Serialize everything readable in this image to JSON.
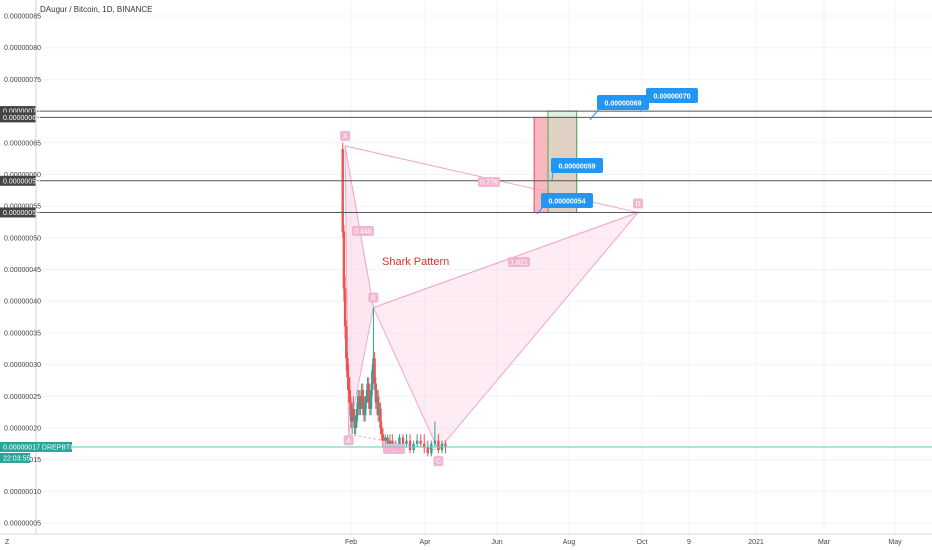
{
  "header": {
    "title": "DAugur / Bitcoin, 1D, BINANCE"
  },
  "colors": {
    "up": "#26a69a",
    "down": "#ef5350",
    "pattern_fill": "#f8c8dc",
    "pattern_line": "#f0a8c8",
    "point_label_bg": "#f2b6d0",
    "callout": "#2196f3",
    "price_line": "#5ec8d0",
    "hline": "#555555",
    "annotation": "#e03030"
  },
  "chart_data": {
    "type": "candlestick",
    "symbol": "DREPBTC",
    "x_ticks": [
      "Feb",
      "Apr",
      "Jun",
      "Aug",
      "Oct",
      "9",
      "2021",
      "Mar",
      "May"
    ],
    "y_ticks": [
      "0.00000085",
      "0.00000080",
      "0.00000075",
      "0.00000065",
      "0.00000060",
      "0.00000055",
      "0.00000050",
      "0.00000045",
      "0.00000040",
      "0.00000035",
      "0.00000030",
      "0.00000025",
      "0.00000020",
      "0.00000015",
      "0.00000010",
      "0.00000005"
    ],
    "ylim": [
      4e-08,
      8.7e-07
    ],
    "current_price": {
      "value": 1.7e-07,
      "label": "0.00000017",
      "symbol_label": "DREPBTC",
      "countdown": "22:03:55"
    },
    "horizontal_levels": [
      {
        "value": 7e-07,
        "label": "0.00000070"
      },
      {
        "value": 6.9e-07,
        "label": "0.00000069"
      },
      {
        "value": 5.9e-07,
        "label": "0.00000059"
      },
      {
        "value": 5.4e-07,
        "label": "0.00000054"
      }
    ],
    "callouts": [
      "0.00000069",
      "0.00000070",
      "0.00000059",
      "0.00000054"
    ],
    "harmonic_pattern": {
      "name": "Shark Pattern",
      "points": [
        {
          "label": "X",
          "date": "2020-01-27",
          "price": 6.45e-07
        },
        {
          "label": "A",
          "date": "2020-01-30",
          "price": 1.9e-07
        },
        {
          "label": "B",
          "date": "2020-02-20",
          "price": 3.9e-07
        },
        {
          "label": "C",
          "date": "2020-04-15",
          "price": 1.65e-07
        },
        {
          "label": "D",
          "date": "2020-10-01",
          "price": 5.4e-07
        }
      ],
      "ratios": [
        {
          "text": "0.446",
          "from": "X",
          "to": "B"
        },
        {
          "text": "0.776",
          "from": "X",
          "to": "D"
        },
        {
          "text": "1.621",
          "from": "B",
          "to": "D"
        },
        {
          "text": "...",
          "from": "A",
          "to": "C"
        }
      ]
    },
    "position_box": {
      "start": "2020-07-05",
      "end": "2020-08-10",
      "entry": 6.9e-07,
      "stop": 5.4e-07,
      "target": 7e-07
    },
    "candles": [
      {
        "d": "2020-01-25",
        "o": 6.4e-07,
        "h": 6.5e-07,
        "l": 5e-07,
        "c": 5.1e-07
      },
      {
        "d": "2020-01-26",
        "o": 5.1e-07,
        "h": 5.2e-07,
        "l": 4e-07,
        "c": 4.2e-07
      },
      {
        "d": "2020-01-27",
        "o": 4.2e-07,
        "h": 4.4e-07,
        "l": 3.4e-07,
        "c": 3.6e-07
      },
      {
        "d": "2020-01-28",
        "o": 3.6e-07,
        "h": 3.7e-07,
        "l": 2.9e-07,
        "c": 3.1e-07
      },
      {
        "d": "2020-01-29",
        "o": 3.1e-07,
        "h": 3.2e-07,
        "l": 2.6e-07,
        "c": 2.8e-07
      },
      {
        "d": "2020-01-30",
        "o": 2.8e-07,
        "h": 3e-07,
        "l": 2.4e-07,
        "c": 2.6e-07
      },
      {
        "d": "2020-01-31",
        "o": 2.6e-07,
        "h": 2.8e-07,
        "l": 2.2e-07,
        "c": 2.4e-07
      },
      {
        "d": "2020-02-01",
        "o": 2.4e-07,
        "h": 2.5e-07,
        "l": 2e-07,
        "c": 2.1e-07
      },
      {
        "d": "2020-02-02",
        "o": 2.1e-07,
        "h": 2.4e-07,
        "l": 1.9e-07,
        "c": 2.3e-07
      },
      {
        "d": "2020-02-03",
        "o": 2.3e-07,
        "h": 2.5e-07,
        "l": 2.1e-07,
        "c": 2.2e-07
      },
      {
        "d": "2020-02-04",
        "o": 2.2e-07,
        "h": 2.3e-07,
        "l": 1.9e-07,
        "c": 2e-07
      },
      {
        "d": "2020-02-05",
        "o": 2e-07,
        "h": 2.2e-07,
        "l": 1.9e-07,
        "c": 2.1e-07
      },
      {
        "d": "2020-02-06",
        "o": 2.1e-07,
        "h": 2.4e-07,
        "l": 2e-07,
        "c": 2.3e-07
      },
      {
        "d": "2020-02-07",
        "o": 2.3e-07,
        "h": 2.6e-07,
        "l": 2.2e-07,
        "c": 2.5e-07
      },
      {
        "d": "2020-02-08",
        "o": 2.5e-07,
        "h": 2.6e-07,
        "l": 2.2e-07,
        "c": 2.3e-07
      },
      {
        "d": "2020-02-09",
        "o": 2.3e-07,
        "h": 2.5e-07,
        "l": 2.2e-07,
        "c": 2.4e-07
      },
      {
        "d": "2020-02-10",
        "o": 2.4e-07,
        "h": 2.7e-07,
        "l": 2.3e-07,
        "c": 2.6e-07
      },
      {
        "d": "2020-02-11",
        "o": 2.6e-07,
        "h": 2.7e-07,
        "l": 2.2e-07,
        "c": 2.3e-07
      },
      {
        "d": "2020-02-12",
        "o": 2.3e-07,
        "h": 2.5e-07,
        "l": 2.1e-07,
        "c": 2.2e-07
      },
      {
        "d": "2020-02-13",
        "o": 2.2e-07,
        "h": 2.5e-07,
        "l": 2.1e-07,
        "c": 2.4e-07
      },
      {
        "d": "2020-02-14",
        "o": 2.4e-07,
        "h": 2.6e-07,
        "l": 2.3e-07,
        "c": 2.5e-07
      },
      {
        "d": "2020-02-15",
        "o": 2.5e-07,
        "h": 2.8e-07,
        "l": 2.4e-07,
        "c": 2.7e-07
      },
      {
        "d": "2020-02-16",
        "o": 2.7e-07,
        "h": 2.8e-07,
        "l": 2.3e-07,
        "c": 2.4e-07
      },
      {
        "d": "2020-02-17",
        "o": 2.4e-07,
        "h": 2.6e-07,
        "l": 2.2e-07,
        "c": 2.3e-07
      },
      {
        "d": "2020-02-18",
        "o": 2.3e-07,
        "h": 2.7e-07,
        "l": 2.2e-07,
        "c": 2.6e-07
      },
      {
        "d": "2020-02-19",
        "o": 2.6e-07,
        "h": 3e-07,
        "l": 2.5e-07,
        "c": 2.9e-07
      },
      {
        "d": "2020-02-20",
        "o": 2.9e-07,
        "h": 3.9e-07,
        "l": 2.8e-07,
        "c": 3.1e-07
      },
      {
        "d": "2020-02-21",
        "o": 3.1e-07,
        "h": 3.2e-07,
        "l": 2.6e-07,
        "c": 2.7e-07
      },
      {
        "d": "2020-02-22",
        "o": 2.7e-07,
        "h": 2.8e-07,
        "l": 2.3e-07,
        "c": 2.4e-07
      },
      {
        "d": "2020-02-23",
        "o": 2.4e-07,
        "h": 2.6e-07,
        "l": 2.2e-07,
        "c": 2.5e-07
      },
      {
        "d": "2020-02-24",
        "o": 2.5e-07,
        "h": 2.6e-07,
        "l": 2.1e-07,
        "c": 2.2e-07
      },
      {
        "d": "2020-02-25",
        "o": 2.2e-07,
        "h": 2.4e-07,
        "l": 2.1e-07,
        "c": 2.3e-07
      },
      {
        "d": "2020-02-26",
        "o": 2.3e-07,
        "h": 2.4e-07,
        "l": 1.9e-07,
        "c": 2e-07
      },
      {
        "d": "2020-02-27",
        "o": 2e-07,
        "h": 2.1e-07,
        "l": 1.8e-07,
        "c": 1.9e-07
      },
      {
        "d": "2020-02-28",
        "o": 1.9e-07,
        "h": 2e-07,
        "l": 1.7e-07,
        "c": 1.8e-07
      },
      {
        "d": "2020-03-01",
        "o": 1.8e-07,
        "h": 1.9e-07,
        "l": 1.7e-07,
        "c": 1.85e-07
      },
      {
        "d": "2020-03-03",
        "o": 1.85e-07,
        "h": 1.9e-07,
        "l": 1.7e-07,
        "c": 1.75e-07
      },
      {
        "d": "2020-03-05",
        "o": 1.75e-07,
        "h": 1.9e-07,
        "l": 1.6e-07,
        "c": 1.8e-07
      },
      {
        "d": "2020-03-07",
        "o": 1.8e-07,
        "h": 1.9e-07,
        "l": 1.7e-07,
        "c": 1.75e-07
      },
      {
        "d": "2020-03-10",
        "o": 1.75e-07,
        "h": 1.8e-07,
        "l": 1.6e-07,
        "c": 1.7e-07
      },
      {
        "d": "2020-03-13",
        "o": 1.7e-07,
        "h": 1.9e-07,
        "l": 1.6e-07,
        "c": 1.85e-07
      },
      {
        "d": "2020-03-16",
        "o": 1.85e-07,
        "h": 1.9e-07,
        "l": 1.7e-07,
        "c": 1.75e-07
      },
      {
        "d": "2020-03-19",
        "o": 1.75e-07,
        "h": 1.9e-07,
        "l": 1.7e-07,
        "c": 1.8e-07
      },
      {
        "d": "2020-03-22",
        "o": 1.8e-07,
        "h": 1.9e-07,
        "l": 1.6e-07,
        "c": 1.65e-07
      },
      {
        "d": "2020-03-25",
        "o": 1.65e-07,
        "h": 1.8e-07,
        "l": 1.6e-07,
        "c": 1.75e-07
      },
      {
        "d": "2020-03-28",
        "o": 1.75e-07,
        "h": 1.9e-07,
        "l": 1.7e-07,
        "c": 1.8e-07
      },
      {
        "d": "2020-03-31",
        "o": 1.8e-07,
        "h": 1.9e-07,
        "l": 1.7e-07,
        "c": 1.75e-07
      },
      {
        "d": "2020-04-03",
        "o": 1.75e-07,
        "h": 1.9e-07,
        "l": 1.6e-07,
        "c": 1.7e-07
      },
      {
        "d": "2020-04-06",
        "o": 1.7e-07,
        "h": 1.8e-07,
        "l": 1.55e-07,
        "c": 1.6e-07
      },
      {
        "d": "2020-04-09",
        "o": 1.6e-07,
        "h": 1.8e-07,
        "l": 1.55e-07,
        "c": 1.75e-07
      },
      {
        "d": "2020-04-12",
        "o": 1.75e-07,
        "h": 2.1e-07,
        "l": 1.7e-07,
        "c": 1.8e-07
      },
      {
        "d": "2020-04-15",
        "o": 1.8e-07,
        "h": 1.9e-07,
        "l": 1.6e-07,
        "c": 1.65e-07
      },
      {
        "d": "2020-04-18",
        "o": 1.65e-07,
        "h": 1.8e-07,
        "l": 1.6e-07,
        "c": 1.75e-07
      },
      {
        "d": "2020-04-21",
        "o": 1.75e-07,
        "h": 1.8e-07,
        "l": 1.6e-07,
        "c": 1.7e-07
      }
    ]
  },
  "bottom": {
    "timezone_button": "Z"
  }
}
